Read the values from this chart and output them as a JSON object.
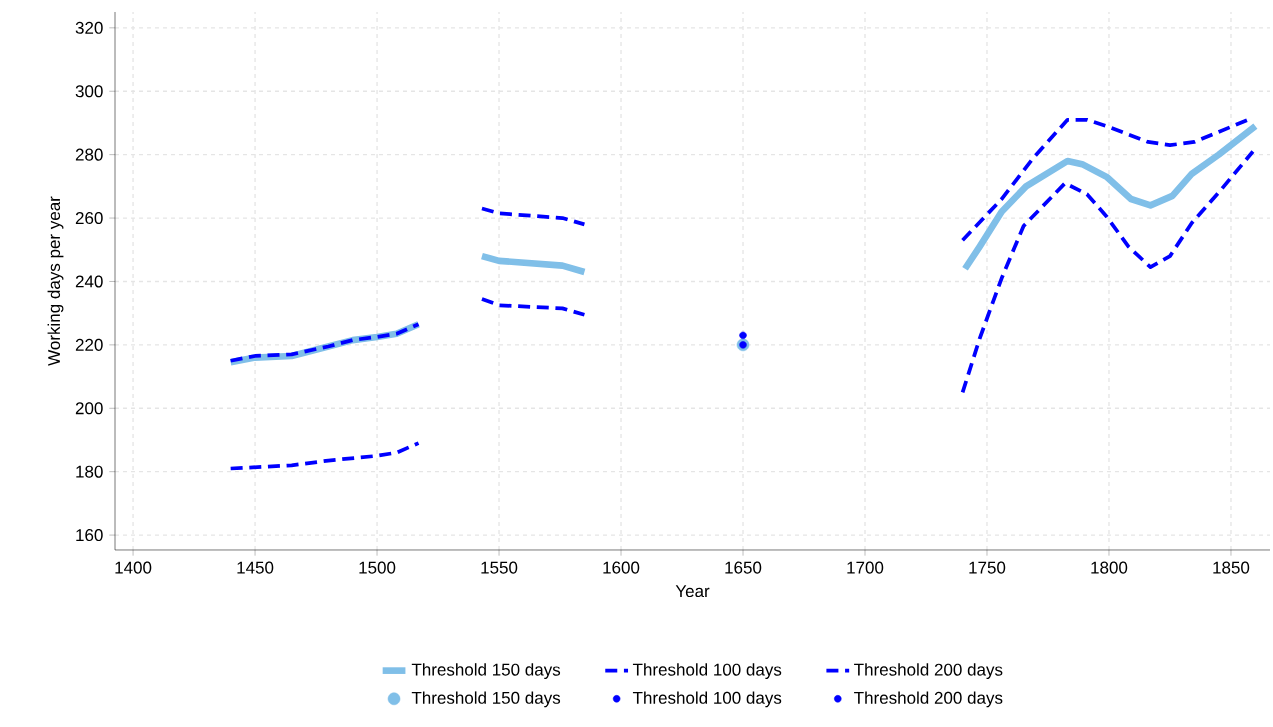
{
  "chart_data": {
    "type": "line",
    "xlabel": "Year",
    "ylabel": "Working days per year",
    "xlim": [
      1392.6,
      1866
    ],
    "ylim": [
      155.3,
      325
    ],
    "xticks": [
      1400,
      1450,
      1500,
      1550,
      1600,
      1650,
      1700,
      1750,
      1800,
      1850
    ],
    "yticks": [
      160,
      180,
      200,
      220,
      240,
      260,
      280,
      300,
      320
    ],
    "grid": true,
    "legend": "bottom",
    "series": [
      {
        "name": "Threshold 150 days",
        "line_style": "solid",
        "color": "#80bfe8",
        "x": [
          1440,
          1450,
          1465,
          1480,
          1490,
          1500,
          1508,
          1517,
          1530,
          1543,
          1550,
          1576,
          1585,
          1700,
          1741,
          1747,
          1756,
          1766,
          1783,
          1789,
          1799,
          1809,
          1817,
          1826,
          1834,
          1845,
          1860
        ],
        "values": [
          214.5,
          216,
          216.5,
          219.5,
          221.5,
          222.5,
          223.5,
          226.5,
          null,
          248,
          246.5,
          245,
          243,
          null,
          244,
          251,
          262,
          270,
          278,
          277,
          273,
          266,
          264,
          267,
          274,
          280,
          289
        ]
      },
      {
        "name": "Threshold 100 days",
        "line_style": "dashed",
        "color": "#0000ff",
        "x": [
          1440,
          1450,
          1465,
          1480,
          1490,
          1500,
          1508,
          1517,
          1530,
          1543,
          1550,
          1576,
          1585,
          1700,
          1740,
          1756,
          1769,
          1783,
          1791,
          1799,
          1816,
          1825,
          1835,
          1857
        ],
        "values": [
          215,
          216.5,
          217,
          219.5,
          221.5,
          222.5,
          223.5,
          226.5,
          null,
          263,
          261.5,
          260,
          258,
          null,
          253,
          266,
          279,
          291,
          291,
          289,
          284,
          283,
          284,
          291
        ]
      },
      {
        "name": "Threshold 200 days",
        "line_style": "dashed",
        "color": "#0000ff",
        "x": [
          1440,
          1465,
          1480,
          1500,
          1508,
          1517,
          1530,
          1543,
          1550,
          1576,
          1585,
          1700,
          1740,
          1747,
          1756,
          1765,
          1782,
          1791,
          1799,
          1808,
          1817,
          1825,
          1834,
          1846,
          1859
        ],
        "values": [
          181,
          182,
          183.5,
          185,
          186,
          189,
          null,
          234.5,
          232.5,
          231.5,
          229.5,
          null,
          205,
          222,
          241,
          257.5,
          271,
          267.5,
          260.5,
          251,
          244.5,
          248,
          258.5,
          269,
          281
        ]
      },
      {
        "name": "Threshold 150 days",
        "type": "scatter",
        "marker": "circle",
        "color": "#80bfe8",
        "x": [
          1650
        ],
        "values": [
          220
        ]
      },
      {
        "name": "Threshold 100 days",
        "type": "scatter",
        "marker": "circle",
        "color": "#0000ff",
        "x": [
          1650
        ],
        "values": [
          223
        ]
      },
      {
        "name": "Threshold 200 days",
        "type": "scatter",
        "marker": "circle",
        "color": "#0000ff",
        "x": [
          1650
        ],
        "values": [
          220
        ]
      }
    ]
  }
}
